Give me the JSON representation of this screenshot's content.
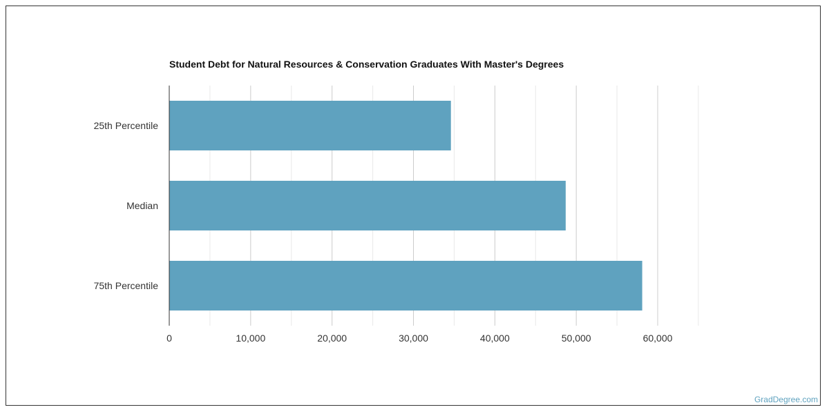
{
  "chart_data": {
    "type": "bar",
    "orientation": "horizontal",
    "title": "Student Debt for Natural Resources & Conservation Graduates With Master's Degrees",
    "categories": [
      "25th Percentile",
      "Median",
      "75th Percentile"
    ],
    "values": [
      34600,
      48700,
      58100
    ],
    "xlim": [
      0,
      60000
    ],
    "xticks": [
      0,
      10000,
      20000,
      30000,
      40000,
      50000,
      60000
    ],
    "xtick_labels": [
      "0",
      "10,000",
      "20,000",
      "30,000",
      "40,000",
      "50,000",
      "60,000"
    ],
    "xlabel": "",
    "ylabel": "",
    "grid": true,
    "bar_color": "#5fa2bf"
  },
  "watermark": "GradDegree.com"
}
